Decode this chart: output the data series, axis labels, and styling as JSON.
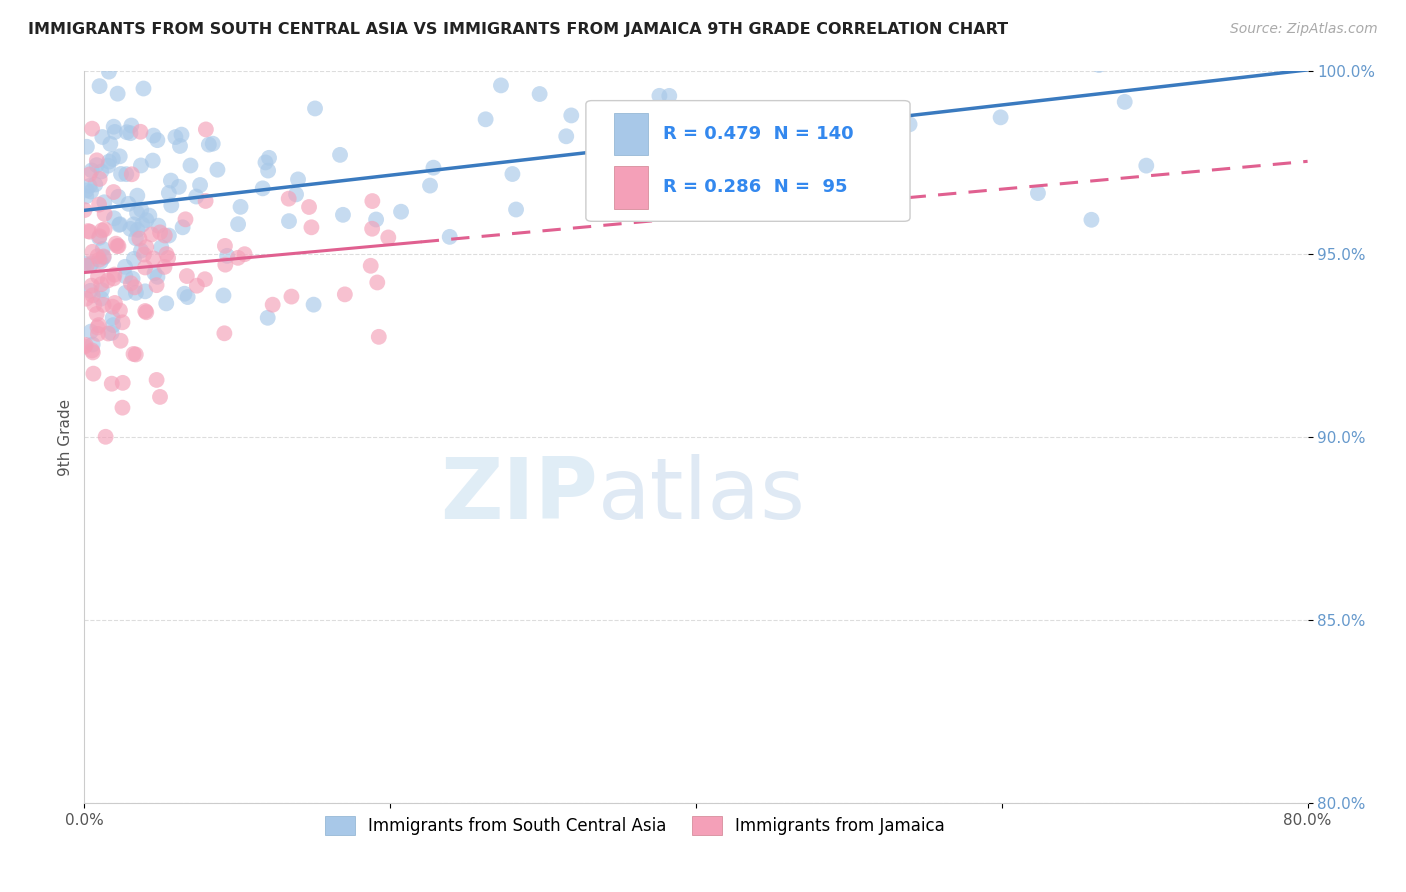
{
  "title": "IMMIGRANTS FROM SOUTH CENTRAL ASIA VS IMMIGRANTS FROM JAMAICA 9TH GRADE CORRELATION CHART",
  "source": "Source: ZipAtlas.com",
  "ylabel": "9th Grade",
  "xlim": [
    0.0,
    80.0
  ],
  "ylim": [
    80.0,
    100.0
  ],
  "ytick_vals": [
    80.0,
    85.0,
    90.0,
    95.0,
    100.0
  ],
  "ytick_labels": [
    "80.0%",
    "85.0%",
    "90.0%",
    "95.0%",
    "100.0%"
  ],
  "xtick_vals": [
    0.0,
    80.0
  ],
  "xtick_labels": [
    "0.0%",
    "80.0%"
  ],
  "blue_R": 0.479,
  "blue_N": 140,
  "pink_R": 0.286,
  "pink_N": 95,
  "blue_color": "#a8c8e8",
  "pink_color": "#f4a0b8",
  "blue_line_color": "#3a7abf",
  "pink_line_color": "#e06090",
  "blue_scatter_alpha": 0.65,
  "pink_scatter_alpha": 0.65,
  "scatter_size": 130,
  "blue_legend_text1": "R = 0.479",
  "blue_legend_text2": "N = 140",
  "pink_legend_text1": "R = 0.286",
  "pink_legend_text2": "N =  95",
  "blue_legend_label": "Immigrants from South Central Asia",
  "pink_legend_label": "Immigrants from Jamaica",
  "watermark_zip": "ZIP",
  "watermark_atlas": "atlas",
  "background_color": "#ffffff",
  "grid_color": "#dddddd",
  "title_color": "#222222",
  "source_color": "#aaaaaa",
  "ytick_color": "#6699cc",
  "xtick_color": "#555555",
  "ylabel_color": "#555555"
}
